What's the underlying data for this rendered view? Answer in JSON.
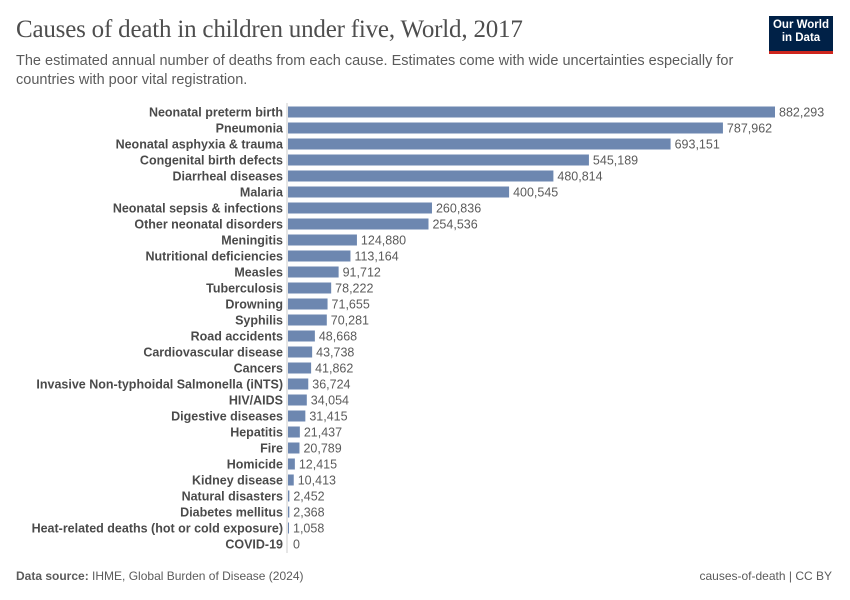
{
  "header": {
    "title": "Causes of death in children under five, World, 2017",
    "subtitle": "The estimated annual number of deaths from each cause. Estimates come with wide uncertainties especially for countries with poor vital registration.",
    "logo": [
      "Our World",
      "in Data"
    ]
  },
  "footer": {
    "source_label": "Data source:",
    "source": "IHME, Global Burden of Disease (2024)",
    "right": "causes-of-death | CC BY"
  },
  "chart_data": {
    "type": "bar",
    "orientation": "horizontal",
    "title": "Causes of death in children under five, World, 2017",
    "bar_color": "#6d87b0",
    "grid": false,
    "categories": [
      "Neonatal preterm birth",
      "Pneumonia",
      "Neonatal asphyxia & trauma",
      "Congenital birth defects",
      "Diarrheal diseases",
      "Malaria",
      "Neonatal sepsis & infections",
      "Other neonatal disorders",
      "Meningitis",
      "Nutritional deficiencies",
      "Measles",
      "Tuberculosis",
      "Drowning",
      "Syphilis",
      "Road accidents",
      "Cardiovascular disease",
      "Cancers",
      "Invasive Non-typhoidal Salmonella (iNTS)",
      "HIV/AIDS",
      "Digestive diseases",
      "Hepatitis",
      "Fire",
      "Homicide",
      "Kidney disease",
      "Natural disasters",
      "Diabetes mellitus",
      "Heat-related deaths (hot or cold exposure)",
      "COVID-19"
    ],
    "values": [
      882293,
      787962,
      693151,
      545189,
      480814,
      400545,
      260836,
      254536,
      124880,
      113164,
      91712,
      78222,
      71655,
      70281,
      48668,
      43738,
      41862,
      36724,
      34054,
      31415,
      21437,
      20789,
      12415,
      10413,
      2452,
      2368,
      1058,
      0
    ]
  }
}
